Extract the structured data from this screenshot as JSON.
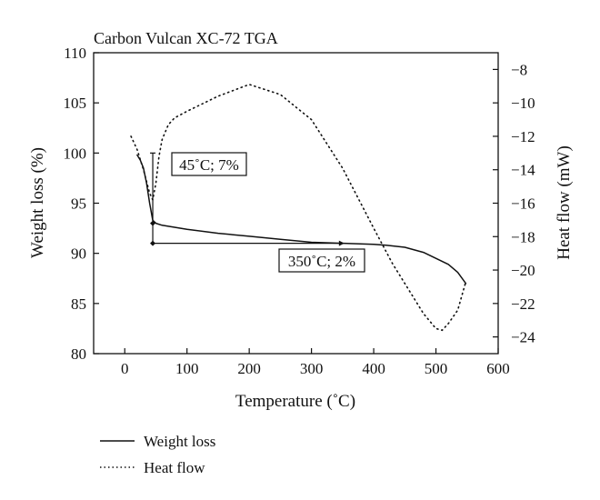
{
  "chart_data": {
    "type": "line",
    "title": "Carbon Vulcan XC-72 TGA",
    "xlabel": "Temperature (˚C)",
    "ylabel": "Weight loss (%)",
    "y2label": "Heat flow (mW)",
    "xlim": [
      -50,
      600
    ],
    "ylim": [
      80,
      110
    ],
    "y2lim": [
      -25,
      -7
    ],
    "xticks": [
      0,
      100,
      200,
      300,
      400,
      500,
      600
    ],
    "yticks": [
      80,
      85,
      90,
      95,
      100,
      105,
      110
    ],
    "y2ticks": [
      -24,
      -22,
      -20,
      -18,
      -16,
      -14,
      -12,
      -10,
      -8
    ],
    "grid": false,
    "legend_position": "bottom-left",
    "series": [
      {
        "name": "Weight loss",
        "axis": "left",
        "style": "solid",
        "x": [
          20,
          25,
          30,
          35,
          40,
          45,
          50,
          60,
          80,
          100,
          150,
          200,
          250,
          300,
          350,
          400,
          420,
          450,
          480,
          500,
          520,
          535,
          548
        ],
        "y": [
          99.8,
          99.3,
          98.5,
          97,
          95,
          93.3,
          93,
          92.8,
          92.6,
          92.4,
          92,
          91.7,
          91.4,
          91.1,
          91,
          90.9,
          90.8,
          90.6,
          90.1,
          89.5,
          88.9,
          88.1,
          87
        ]
      },
      {
        "name": "Heat flow",
        "axis": "right",
        "style": "dotted",
        "x": [
          10,
          20,
          30,
          40,
          45,
          50,
          55,
          60,
          70,
          80,
          100,
          150,
          200,
          250,
          300,
          350,
          400,
          430,
          450,
          480,
          500,
          510,
          520,
          535,
          548
        ],
        "y": [
          -12,
          -12.8,
          -14,
          -15.4,
          -15.8,
          -14.8,
          -13.2,
          -12.2,
          -11.3,
          -10.9,
          -10.5,
          -9.6,
          -8.9,
          -9.5,
          -11,
          -13.9,
          -17.5,
          -19.6,
          -20.8,
          -22.6,
          -23.5,
          -23.6,
          -23.2,
          -22.4,
          -20.7
        ]
      }
    ],
    "annotations": [
      {
        "label": "45˚C; 7%",
        "x": 45,
        "y_from": 100,
        "y_to": 93
      },
      {
        "label": "350˚C; 2%",
        "x_from": 45,
        "x_to": 350,
        "y": 91
      }
    ]
  }
}
